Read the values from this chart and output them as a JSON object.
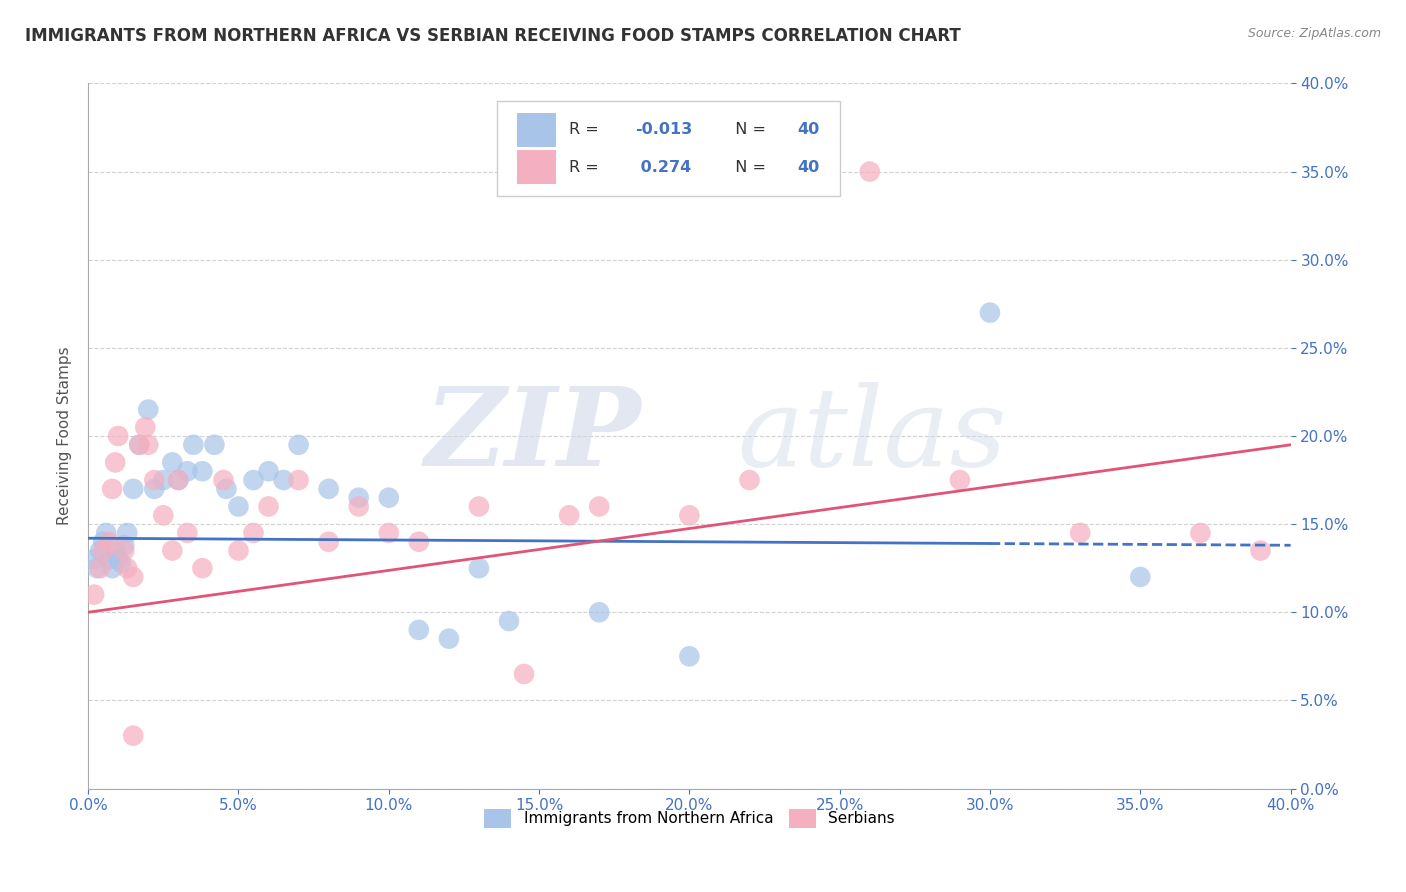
{
  "title": "IMMIGRANTS FROM NORTHERN AFRICA VS SERBIAN RECEIVING FOOD STAMPS CORRELATION CHART",
  "source": "Source: ZipAtlas.com",
  "ylabel": "Receiving Food Stamps",
  "legend_label_blue": "Immigrants from Northern Africa",
  "legend_label_pink": "Serbians",
  "xlim": [
    0.0,
    0.4
  ],
  "ylim": [
    0.0,
    0.4
  ],
  "blue_color": "#a8c4e8",
  "pink_color": "#f4afc0",
  "blue_line_color": "#4472C4",
  "pink_line_color": "#E05575",
  "title_fontsize": 12,
  "axis_label_fontsize": 11,
  "tick_fontsize": 11,
  "blue_r": "-0.013",
  "pink_r": "0.274",
  "n_blue": "40",
  "n_pink": "40",
  "blue_scatter_x": [
    0.002,
    0.003,
    0.004,
    0.005,
    0.006,
    0.007,
    0.008,
    0.009,
    0.01,
    0.011,
    0.012,
    0.013,
    0.015,
    0.017,
    0.02,
    0.022,
    0.025,
    0.028,
    0.03,
    0.033,
    0.035,
    0.038,
    0.042,
    0.046,
    0.05,
    0.055,
    0.06,
    0.065,
    0.07,
    0.08,
    0.09,
    0.1,
    0.11,
    0.12,
    0.13,
    0.14,
    0.17,
    0.2,
    0.35,
    0.3
  ],
  "blue_scatter_y": [
    0.13,
    0.125,
    0.135,
    0.14,
    0.145,
    0.13,
    0.125,
    0.135,
    0.13,
    0.128,
    0.138,
    0.145,
    0.17,
    0.195,
    0.215,
    0.17,
    0.175,
    0.185,
    0.175,
    0.18,
    0.195,
    0.18,
    0.195,
    0.17,
    0.16,
    0.175,
    0.18,
    0.175,
    0.195,
    0.17,
    0.165,
    0.165,
    0.09,
    0.085,
    0.125,
    0.095,
    0.1,
    0.075,
    0.12,
    0.27
  ],
  "pink_scatter_x": [
    0.002,
    0.004,
    0.005,
    0.007,
    0.008,
    0.009,
    0.01,
    0.012,
    0.013,
    0.015,
    0.017,
    0.019,
    0.02,
    0.022,
    0.025,
    0.028,
    0.03,
    0.033,
    0.038,
    0.045,
    0.05,
    0.055,
    0.06,
    0.07,
    0.08,
    0.09,
    0.1,
    0.11,
    0.13,
    0.16,
    0.17,
    0.2,
    0.22,
    0.26,
    0.29,
    0.33,
    0.37,
    0.39,
    0.145,
    0.015
  ],
  "pink_scatter_y": [
    0.11,
    0.125,
    0.135,
    0.14,
    0.17,
    0.185,
    0.2,
    0.135,
    0.125,
    0.12,
    0.195,
    0.205,
    0.195,
    0.175,
    0.155,
    0.135,
    0.175,
    0.145,
    0.125,
    0.175,
    0.135,
    0.145,
    0.16,
    0.175,
    0.14,
    0.16,
    0.145,
    0.14,
    0.16,
    0.155,
    0.16,
    0.155,
    0.175,
    0.35,
    0.175,
    0.145,
    0.145,
    0.135,
    0.065,
    0.03
  ],
  "blue_line_x0": 0.0,
  "blue_line_x1": 0.4,
  "blue_line_y0": 0.142,
  "blue_line_y1": 0.138,
  "pink_line_x0": 0.0,
  "pink_line_x1": 0.4,
  "pink_line_y0": 0.1,
  "pink_line_y1": 0.195
}
